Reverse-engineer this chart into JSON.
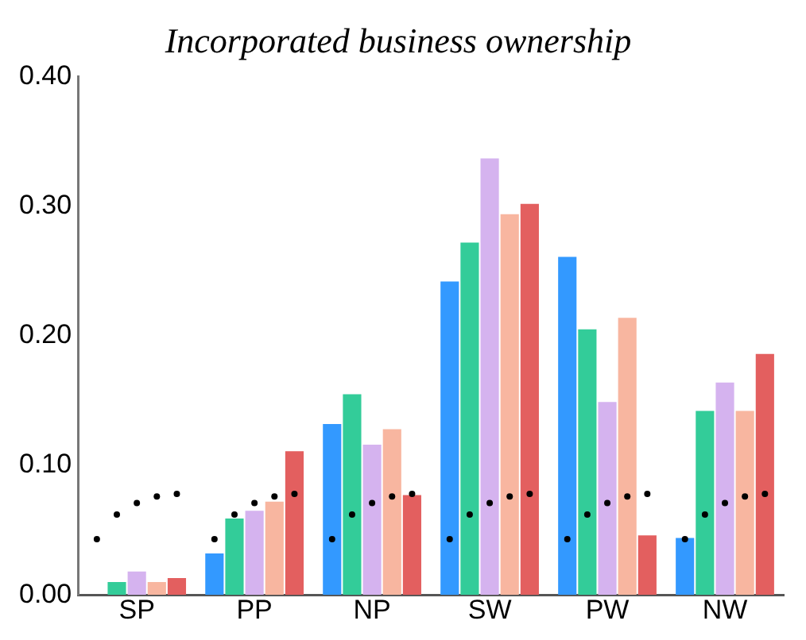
{
  "chart_data": {
    "type": "bar",
    "title": "Incorporated business ownership",
    "categories": [
      "SP",
      "PP",
      "NP",
      "SW",
      "PW",
      "NW"
    ],
    "series": [
      {
        "color": "#3399ff",
        "values": [
          0.0,
          0.032,
          0.132,
          0.242,
          0.261,
          0.044
        ]
      },
      {
        "color": "#33cc99",
        "values": [
          0.01,
          0.059,
          0.155,
          0.272,
          0.205,
          0.142
        ]
      },
      {
        "color": "#d5b3ef",
        "values": [
          0.018,
          0.065,
          0.116,
          0.337,
          0.149,
          0.164
        ]
      },
      {
        "color": "#f8b6a0",
        "values": [
          0.01,
          0.072,
          0.128,
          0.294,
          0.214,
          0.142
        ]
      },
      {
        "color": "#e35f5f",
        "values": [
          0.013,
          0.111,
          0.077,
          0.302,
          0.046,
          0.186
        ]
      },
      {
        "type": "scatter",
        "color": "#000000",
        "values": [
          0.043,
          0.043,
          0.043,
          0.043,
          0.043,
          0.043
        ]
      },
      {
        "type": "scatter",
        "color": "#000000",
        "values": [
          0.062,
          0.062,
          0.062,
          0.062,
          0.062,
          0.062
        ]
      },
      {
        "type": "scatter",
        "color": "#000000",
        "values": [
          0.071,
          0.071,
          0.071,
          0.071,
          0.071,
          0.071
        ]
      },
      {
        "type": "scatter",
        "color": "#000000",
        "values": [
          0.076,
          0.076,
          0.076,
          0.076,
          0.076,
          0.076
        ]
      },
      {
        "type": "scatter",
        "color": "#000000",
        "values": [
          0.078,
          0.078,
          0.078,
          0.078,
          0.078,
          0.078
        ]
      }
    ],
    "ylim": [
      0,
      0.4
    ],
    "yticks": [
      {
        "value": 0,
        "label": "0.00"
      },
      {
        "value": 0.1,
        "label": "0.10"
      },
      {
        "value": 0.2,
        "label": "0.20"
      },
      {
        "value": 0.3,
        "label": "0.30"
      },
      {
        "value": 0.4,
        "label": "0.40"
      }
    ],
    "grid": false,
    "legend": false
  }
}
